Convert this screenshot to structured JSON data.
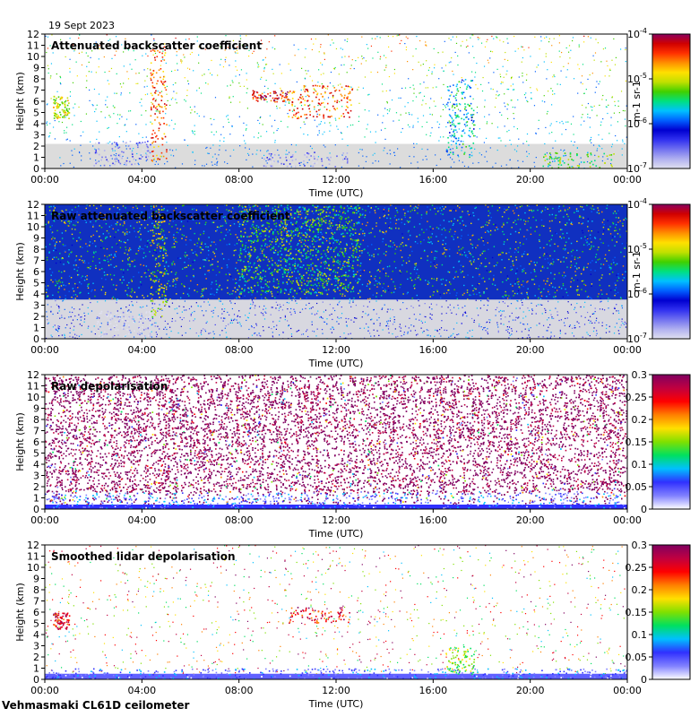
{
  "date": "19 Sept 2023",
  "footer": "Vehmasmaki CL61D ceilometer",
  "chart_data": [
    {
      "type": "heatmap",
      "title": "Attenuated backscatter coefficient",
      "xlabel": "Time (UTC)",
      "ylabel": "Height (km)",
      "x_ticks": [
        "00:00",
        "04:00",
        "08:00",
        "12:00",
        "16:00",
        "20:00",
        "00:00"
      ],
      "y_ticks": [
        "0",
        "1",
        "2",
        "3",
        "4",
        "5",
        "6",
        "7",
        "8",
        "9",
        "10",
        "11",
        "12"
      ],
      "ylim": [
        0,
        12
      ],
      "colorbar": {
        "scale": "log",
        "ticks": [
          "10-7",
          "10-6",
          "10-5",
          "10-4"
        ],
        "unit": "m-1 sr-1"
      },
      "features": [
        {
          "start": "00:20",
          "end": "01:00",
          "base_km": 4.5,
          "top_km": 6.5,
          "level": "1e-5"
        },
        {
          "start": "02:00",
          "end": "04:20",
          "base_km": 0.2,
          "top_km": 2.5,
          "level": "2e-7"
        },
        {
          "start": "04:20",
          "end": "05:00",
          "base_km": 0.5,
          "top_km": 11.0,
          "level": "3e-5"
        },
        {
          "start": "08:30",
          "end": "10:00",
          "base_km": 6.0,
          "top_km": 7.0,
          "level": "5e-5"
        },
        {
          "start": "09:00",
          "end": "12:30",
          "base_km": 0.2,
          "top_km": 1.5,
          "level": "2e-7"
        },
        {
          "start": "10:00",
          "end": "12:40",
          "base_km": 4.5,
          "top_km": 7.5,
          "level": "3e-5"
        },
        {
          "start": "16:30",
          "end": "17:40",
          "base_km": 1.0,
          "top_km": 8.0,
          "level": "2e-6"
        },
        {
          "start": "20:30",
          "end": "23:30",
          "base_km": 0.0,
          "top_km": 1.5,
          "level": "5e-6"
        }
      ]
    },
    {
      "type": "heatmap",
      "title": "Raw attenuated backscatter coefficient",
      "xlabel": "Time (UTC)",
      "ylabel": "Height (km)",
      "x_ticks": [
        "00:00",
        "04:00",
        "08:00",
        "12:00",
        "16:00",
        "20:00",
        "00:00"
      ],
      "y_ticks": [
        "0",
        "1",
        "2",
        "3",
        "4",
        "5",
        "6",
        "7",
        "8",
        "9",
        "10",
        "11",
        "12"
      ],
      "ylim": [
        0,
        12
      ],
      "colorbar": {
        "scale": "log",
        "ticks": [
          "10-7",
          "10-6",
          "10-5",
          "10-4"
        ],
        "unit": "m-1 sr-1"
      },
      "features": [
        {
          "start": "04:20",
          "end": "05:00",
          "base_km": 2.0,
          "top_km": 12.0,
          "level": "1e-5"
        },
        {
          "start": "08:00",
          "end": "13:00",
          "base_km": 4.0,
          "top_km": 12.0,
          "level": "5e-6"
        },
        {
          "start": "02:00",
          "end": "04:20",
          "base_km": 0.2,
          "top_km": 2.5,
          "level": "1e-7"
        }
      ]
    },
    {
      "type": "heatmap",
      "title": "Raw depolarisation",
      "xlabel": "Time (UTC)",
      "ylabel": "Height (km)",
      "x_ticks": [
        "00:00",
        "04:00",
        "08:00",
        "12:00",
        "16:00",
        "20:00",
        "00:00"
      ],
      "y_ticks": [
        "0",
        "1",
        "2",
        "3",
        "4",
        "5",
        "6",
        "7",
        "8",
        "9",
        "10",
        "11",
        "12"
      ],
      "ylim": [
        0,
        12
      ],
      "colorbar": {
        "scale": "linear",
        "ticks": [
          "0",
          "0.05",
          "0.1",
          "0.15",
          "0.2",
          "0.25",
          "0.3"
        ],
        "range": [
          0,
          0.3
        ]
      },
      "features": [
        {
          "start": "00:00",
          "end": "24:00",
          "base_km": 1.5,
          "top_km": 12.0,
          "level": "0.3 (noise)"
        },
        {
          "start": "00:00",
          "end": "24:00",
          "base_km": 0.0,
          "top_km": 1.5,
          "level": "0.05"
        }
      ]
    },
    {
      "type": "heatmap",
      "title": "Smoothed lidar depolarisation",
      "xlabel": "Time (UTC)",
      "ylabel": "Height (km)",
      "x_ticks": [
        "00:00",
        "04:00",
        "08:00",
        "12:00",
        "16:00",
        "20:00",
        "00:00"
      ],
      "y_ticks": [
        "0",
        "1",
        "2",
        "3",
        "4",
        "5",
        "6",
        "7",
        "8",
        "9",
        "10",
        "11",
        "12"
      ],
      "ylim": [
        0,
        12
      ],
      "colorbar": {
        "scale": "linear",
        "ticks": [
          "0",
          "0.05",
          "0.1",
          "0.15",
          "0.2",
          "0.25",
          "0.3"
        ],
        "range": [
          0,
          0.3
        ]
      },
      "features": [
        {
          "start": "00:00",
          "end": "24:00",
          "base_km": 0.0,
          "top_km": 1.0,
          "level": "0.05"
        },
        {
          "start": "00:20",
          "end": "01:00",
          "base_km": 4.5,
          "top_km": 6.0,
          "level": "0.25"
        },
        {
          "start": "10:00",
          "end": "12:40",
          "base_km": 5.0,
          "top_km": 6.5,
          "level": "0.25"
        },
        {
          "start": "16:30",
          "end": "17:40",
          "base_km": 0.5,
          "top_km": 3.0,
          "level": "0.15"
        }
      ]
    }
  ]
}
